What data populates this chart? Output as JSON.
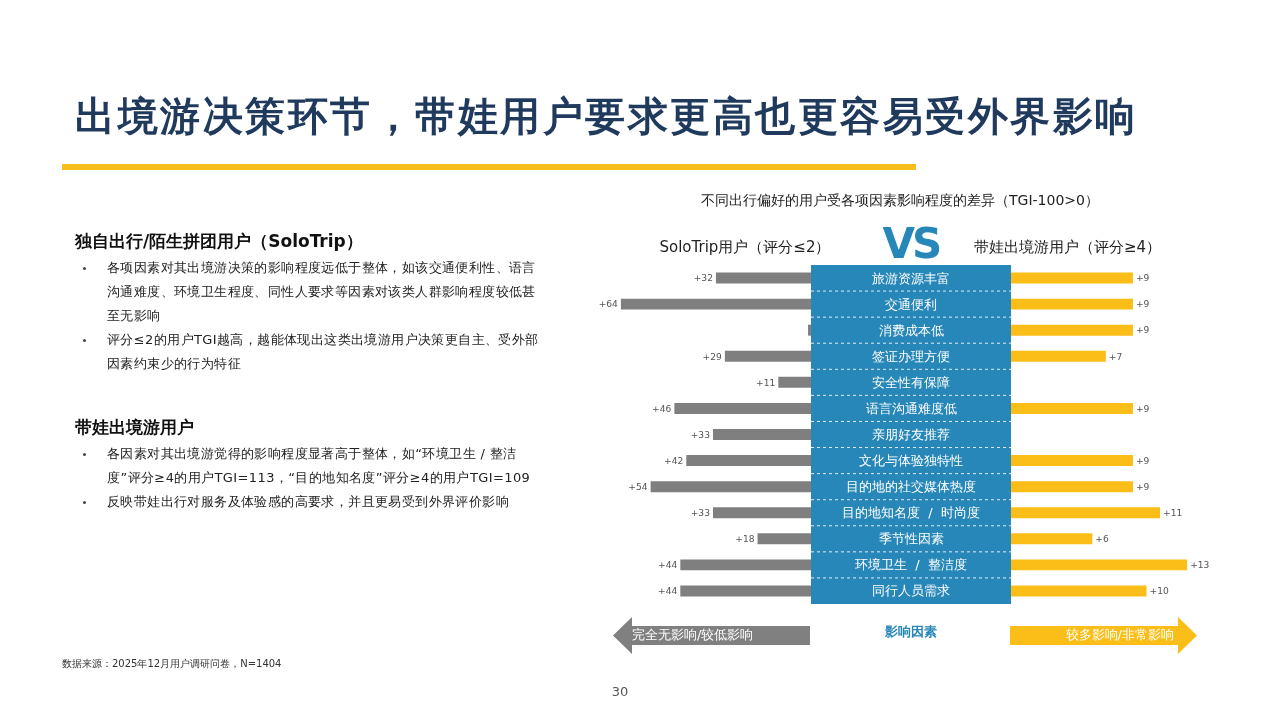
{
  "chart_data": [
    {
      "type": "other",
      "title": "独自出行/陌生拼团用户（SoloTrip）",
      "annotations": [
        "各项因素对其出境游决策的影响程度远低于整体，如该交通便利性、语言沟通难度、环境卫生程度、同性人要求等因素对该类人群影响程度较低甚至无影响",
        "评分≤2的用户TGI越高，越能体现出这类出境游用户决策更自主、受外部因素约束少的行为特征"
      ]
    },
    {
      "type": "other",
      "title": "带娃出境游用户",
      "annotations": [
        "各因素对其出境游觉得的影响程度显著高于整体，如“环境卫生 / 整洁度”评分≥4的用户TGI=113，“目的地知名度”评分≥4的用户TGI=109",
        "反映带娃出行对服务及体验感的高要求，并且更易受到外界评价影响"
      ]
    },
    {
      "type": "bar",
      "orientation": "horizontal",
      "title": "出境游决策环节，带娃用户要求更高也更容易受外界影响",
      "subtitle": "不同出行偏好的用户受各项因素影响程度的差异（TGI-100>0）",
      "categories": [
        "旅游资源丰富",
        "交通便利",
        "消费成本低",
        "签证办理方便",
        "安全性有保障",
        "语言沟通难度低",
        "亲朋好友推荐",
        "文化与体验独特性",
        "目的地的社交媒体热度",
        "目的地知名度  /  时尚度",
        "季节性因素",
        "环境卫生  /  整洁度",
        "同行人员需求"
      ],
      "tick_labels": "y",
      "series": [
        {
          "name": "SoloTrip用户（评分≤2）",
          "color": "#7f7f7f",
          "values": [
            32,
            64,
            1,
            29,
            11,
            46,
            33,
            42,
            54,
            33,
            18,
            44,
            44
          ],
          "value_labels": [
            "+32",
            "+64",
            null,
            "+29",
            "+11",
            "+46",
            "+33",
            "+42",
            "+54",
            "+33",
            "+18",
            "+44",
            "+44"
          ]
        }
      ],
      "annotations": [
        "VS",
        "完全无影响/较低影响",
        "影响因素",
        "较多影响/非常影响",
        "数据来源：2025年12月用户调研问卷，N=1404",
        "30"
      ]
    },
    {
      "type": "bar",
      "orientation": "horizontal",
      "categories": [
        null,
        null,
        null,
        null,
        null,
        null,
        null,
        null,
        null,
        null,
        null,
        null,
        null
      ],
      "tick_labels": false,
      "series": [
        {
          "name": "带娃出境游用户（评分≥4）",
          "color": "#fbbd18",
          "values": [
            9,
            9,
            9,
            7,
            null,
            9,
            null,
            9,
            9,
            11,
            6,
            13,
            10
          ],
          "value_labels": [
            "+9",
            "+9",
            "+9",
            "+7",
            null,
            "+9",
            null,
            "+9",
            "+9",
            "+11",
            "+6",
            "+13",
            "+10"
          ]
        }
      ]
    }
  ]
}
